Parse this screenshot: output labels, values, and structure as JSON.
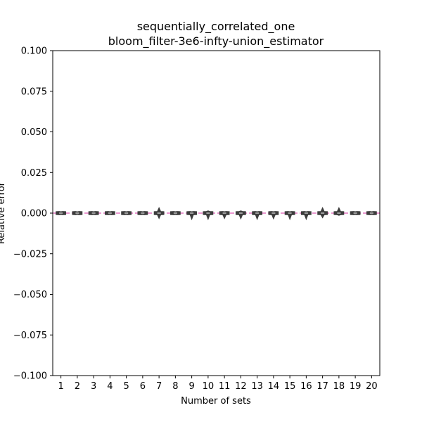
{
  "chart_data": {
    "type": "violin",
    "title_line1": "sequentially_correlated_one",
    "title_line2": "bloom_filter-3e6-infty-union_estimator",
    "xlabel": "Number of sets",
    "ylabel": "Relative error",
    "ylim": [
      -0.1,
      0.1
    ],
    "yticks": [
      -0.1,
      -0.075,
      -0.05,
      -0.025,
      0.0,
      0.025,
      0.05,
      0.075,
      0.1
    ],
    "ytick_labels": [
      "−0.100",
      "−0.075",
      "−0.050",
      "−0.025",
      "0.000",
      "0.025",
      "0.050",
      "0.075",
      "0.100"
    ],
    "categories": [
      "1",
      "2",
      "3",
      "4",
      "5",
      "6",
      "7",
      "8",
      "9",
      "10",
      "11",
      "12",
      "13",
      "14",
      "15",
      "16",
      "17",
      "18",
      "19",
      "20"
    ],
    "median": [
      0,
      0,
      0,
      0,
      0,
      0,
      0,
      0,
      0,
      0,
      0,
      0,
      0,
      0,
      0,
      0,
      0,
      0,
      0,
      0
    ],
    "min": [
      -0.0005,
      -0.0004,
      -0.0005,
      -0.0005,
      -0.0005,
      -0.0005,
      -0.003,
      -0.0005,
      -0.0035,
      -0.0035,
      -0.003,
      -0.0032,
      -0.0035,
      -0.0032,
      -0.0035,
      -0.0035,
      -0.0025,
      -0.001,
      -0.0005,
      -0.0005
    ],
    "max": [
      0.0005,
      0.0004,
      0.0005,
      0.0005,
      0.0005,
      0.0005,
      0.003,
      0.0005,
      0.0005,
      0.001,
      0.0005,
      0.001,
      0.0005,
      0.0005,
      0.0005,
      0.0005,
      0.003,
      0.003,
      0.0005,
      0.0005
    ],
    "reference_line": 0.0,
    "reference_line_color": "#e377c2",
    "violin_color": "#3d3d3d",
    "grid": false
  }
}
